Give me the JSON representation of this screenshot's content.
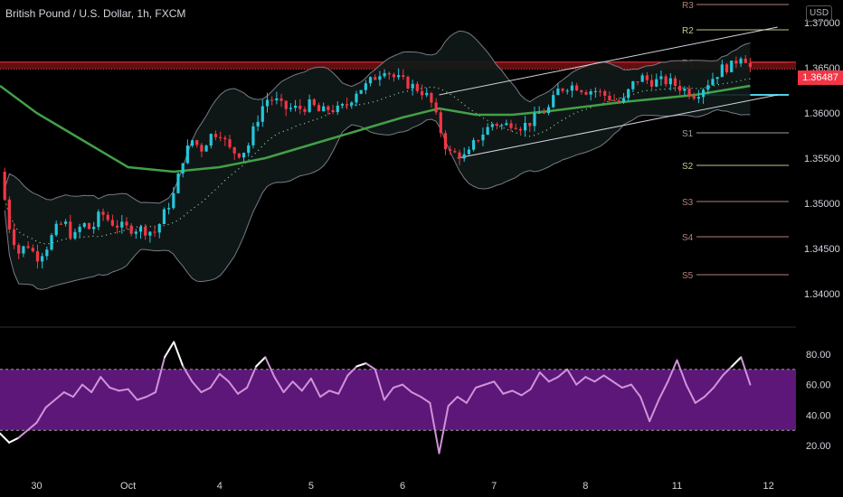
{
  "header": {
    "title": "British Pound / U.S. Dollar, 1h, FXCM",
    "currency": "USD",
    "last_price": "1.36487"
  },
  "colors": {
    "background": "#000000",
    "bull": "#26c6da",
    "bear": "#f23645",
    "ema": "#43a047",
    "bollinger": "#787b86",
    "bb_mid": "#a5d6a7",
    "rsi_line": "#ce93d8",
    "rsi_band": "#7b1fa2",
    "resistance_zone": "#b71c1c"
  },
  "chart_data": [
    {
      "type": "candlestick",
      "title": "British Pound / U.S. Dollar, 1h, FXCM",
      "x_tick_labels": [
        "30",
        "Oct",
        "4",
        "5",
        "6",
        "7",
        "8",
        "11",
        "12"
      ],
      "y_tick_labels": [
        "1.37000",
        "1.36500",
        "1.36000",
        "1.35500",
        "1.35000",
        "1.34500",
        "1.34000"
      ],
      "ylim": [
        1.3375,
        1.3725
      ],
      "xlim": [
        -0.4,
        8.3
      ],
      "overlays": [
        "EMA (green)",
        "Bollinger Bands",
        "Pivot points",
        "Ascending channel"
      ],
      "ohlc_path": [
        [
          -0.4,
          1.3535
        ],
        [
          -0.3,
          1.3475
        ],
        [
          -0.2,
          1.3445
        ],
        [
          -0.1,
          1.3455
        ],
        [
          0.0,
          1.344
        ],
        [
          0.1,
          1.345
        ],
        [
          0.2,
          1.347
        ],
        [
          0.3,
          1.348
        ],
        [
          0.4,
          1.346
        ],
        [
          0.5,
          1.3478
        ],
        [
          0.6,
          1.347
        ],
        [
          0.7,
          1.349
        ],
        [
          0.8,
          1.348
        ],
        [
          0.9,
          1.3475
        ],
        [
          1.0,
          1.3472
        ],
        [
          1.1,
          1.3472
        ],
        [
          1.2,
          1.347
        ],
        [
          1.3,
          1.3468
        ],
        [
          1.4,
          1.349
        ],
        [
          1.5,
          1.351
        ],
        [
          1.6,
          1.355
        ],
        [
          1.7,
          1.357
        ],
        [
          1.8,
          1.356
        ],
        [
          1.9,
          1.3575
        ],
        [
          2.0,
          1.358
        ],
        [
          2.1,
          1.356
        ],
        [
          2.2,
          1.3555
        ],
        [
          2.3,
          1.356
        ],
        [
          2.4,
          1.359
        ],
        [
          2.5,
          1.3615
        ],
        [
          2.6,
          1.3615
        ],
        [
          2.7,
          1.3605
        ],
        [
          2.8,
          1.3605
        ],
        [
          2.9,
          1.3605
        ],
        [
          3.0,
          1.361
        ],
        [
          3.1,
          1.36
        ],
        [
          3.2,
          1.3605
        ],
        [
          3.3,
          1.3603
        ],
        [
          3.4,
          1.361
        ],
        [
          3.5,
          1.3625
        ],
        [
          3.6,
          1.363
        ],
        [
          3.7,
          1.364
        ],
        [
          3.8,
          1.365
        ],
        [
          3.9,
          1.364
        ],
        [
          4.0,
          1.3635
        ],
        [
          4.1,
          1.363
        ],
        [
          4.2,
          1.3625
        ],
        [
          4.3,
          1.3615
        ],
        [
          4.4,
          1.3585
        ],
        [
          4.5,
          1.3555
        ],
        [
          4.6,
          1.3555
        ],
        [
          4.7,
          1.355
        ],
        [
          4.8,
          1.357
        ],
        [
          4.9,
          1.358
        ],
        [
          5.0,
          1.359
        ],
        [
          5.1,
          1.3585
        ],
        [
          5.2,
          1.359
        ],
        [
          5.3,
          1.3585
        ],
        [
          5.4,
          1.359
        ],
        [
          5.5,
          1.36
        ],
        [
          5.6,
          1.3605
        ],
        [
          5.7,
          1.3625
        ],
        [
          5.8,
          1.363
        ],
        [
          5.9,
          1.363
        ],
        [
          6.0,
          1.3625
        ],
        [
          6.1,
          1.3625
        ],
        [
          6.2,
          1.362
        ],
        [
          6.3,
          1.3615
        ],
        [
          6.4,
          1.361
        ],
        [
          6.5,
          1.363
        ],
        [
          6.6,
          1.364
        ],
        [
          6.7,
          1.3635
        ],
        [
          6.8,
          1.3635
        ],
        [
          6.9,
          1.3635
        ],
        [
          7.0,
          1.363
        ],
        [
          7.1,
          1.3625
        ],
        [
          7.2,
          1.362
        ],
        [
          7.3,
          1.363
        ],
        [
          7.4,
          1.364
        ],
        [
          7.5,
          1.365
        ],
        [
          7.6,
          1.3652
        ],
        [
          7.7,
          1.3665
        ],
        [
          7.75,
          1.366
        ],
        [
          7.8,
          1.365
        ]
      ],
      "ema": [
        [
          -0.4,
          1.363
        ],
        [
          0.0,
          1.36
        ],
        [
          0.5,
          1.357
        ],
        [
          1.0,
          1.354
        ],
        [
          1.5,
          1.3535
        ],
        [
          2.0,
          1.354
        ],
        [
          2.5,
          1.355
        ],
        [
          3.0,
          1.3565
        ],
        [
          3.5,
          1.358
        ],
        [
          4.0,
          1.3595
        ],
        [
          4.4,
          1.3605
        ],
        [
          4.8,
          1.3598
        ],
        [
          5.2,
          1.3598
        ],
        [
          5.6,
          1.3602
        ],
        [
          6.0,
          1.3607
        ],
        [
          6.4,
          1.3612
        ],
        [
          6.8,
          1.3616
        ],
        [
          7.2,
          1.362
        ],
        [
          7.5,
          1.3625
        ],
        [
          7.8,
          1.363
        ]
      ],
      "pivots": [
        {
          "label": "R3",
          "value": 1.372,
          "color": "#b2817a"
        },
        {
          "label": "R2",
          "value": 1.3692,
          "color": "#c5c58b"
        },
        {
          "label": "R1",
          "value": 1.3656,
          "color": "#b2817a"
        },
        {
          "label": "S1",
          "value": 1.3578,
          "color": "#9e9e9e"
        },
        {
          "label": "S2",
          "value": 1.3542,
          "color": "#c5c58b"
        },
        {
          "label": "S3",
          "value": 1.3502,
          "color": "#b2817a"
        },
        {
          "label": "S4",
          "value": 1.3463,
          "color": "#b2817a"
        },
        {
          "label": "S5",
          "value": 1.3421,
          "color": "#b2817a"
        }
      ],
      "resistance_zone": [
        1.36486,
        1.36562
      ],
      "support_line": 1.362,
      "channel_upper": [
        [
          4.4,
          1.362
        ],
        [
          8.1,
          1.3695
        ]
      ],
      "channel_lower": [
        [
          4.6,
          1.355
        ],
        [
          8.1,
          1.362
        ]
      ]
    },
    {
      "type": "line",
      "name": "RSI",
      "y_tick_labels": [
        "80.00",
        "60.00",
        "40.00",
        "20.00"
      ],
      "ylim": [
        10,
        90
      ],
      "band": [
        30,
        70
      ],
      "x": [
        -0.4,
        -0.3,
        -0.2,
        -0.1,
        0.0,
        0.1,
        0.2,
        0.3,
        0.4,
        0.5,
        0.6,
        0.7,
        0.8,
        0.9,
        1.0,
        1.1,
        1.2,
        1.3,
        1.4,
        1.5,
        1.6,
        1.7,
        1.8,
        1.9,
        2.0,
        2.1,
        2.2,
        2.3,
        2.4,
        2.5,
        2.6,
        2.7,
        2.8,
        2.9,
        3.0,
        3.1,
        3.2,
        3.3,
        3.4,
        3.5,
        3.6,
        3.7,
        3.8,
        3.9,
        4.0,
        4.1,
        4.2,
        4.3,
        4.4,
        4.5,
        4.6,
        4.7,
        4.8,
        4.9,
        5.0,
        5.1,
        5.2,
        5.3,
        5.4,
        5.5,
        5.6,
        5.7,
        5.8,
        5.9,
        6.0,
        6.1,
        6.2,
        6.3,
        6.4,
        6.5,
        6.6,
        6.7,
        6.8,
        6.9,
        7.0,
        7.1,
        7.2,
        7.3,
        7.4,
        7.5,
        7.6,
        7.7,
        7.8
      ],
      "values": [
        28,
        22,
        25,
        30,
        35,
        45,
        50,
        55,
        52,
        60,
        55,
        65,
        58,
        56,
        57,
        50,
        52,
        55,
        78,
        88,
        72,
        62,
        55,
        58,
        67,
        62,
        54,
        58,
        72,
        78,
        65,
        55,
        62,
        56,
        64,
        52,
        56,
        54,
        66,
        72,
        74,
        70,
        50,
        58,
        60,
        55,
        52,
        48,
        15,
        46,
        52,
        48,
        58,
        60,
        62,
        54,
        56,
        53,
        57,
        68,
        62,
        65,
        70,
        60,
        65,
        62,
        66,
        62,
        58,
        60,
        52,
        36,
        50,
        62,
        76,
        60,
        48,
        52,
        58,
        66,
        72,
        78,
        60
      ]
    }
  ]
}
